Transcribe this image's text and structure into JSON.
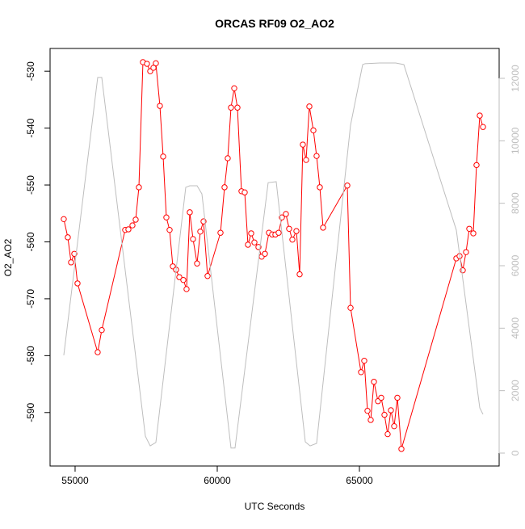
{
  "chart_data": {
    "type": "line",
    "title": "ORCAS RF09 O2_AO2",
    "xlabel": "UTC Seconds",
    "ylabel": "O2_AO2",
    "xlim": [
      54120,
      69915
    ],
    "xticks": [
      55000,
      60000,
      65000
    ],
    "ylim": [
      -599.4,
      -526.0
    ],
    "yticks": [
      -530,
      -540,
      -550,
      -560,
      -570,
      -580,
      -590
    ],
    "y2lim": [
      -414,
      12957
    ],
    "y2ticks": [
      0,
      2000,
      4000,
      6000,
      8000,
      10000,
      12000
    ],
    "y2color": "#bebebe",
    "series": [
      {
        "color": "#ff0000",
        "marker": "circle",
        "x": [
          54602,
          54744,
          54858,
          54972,
          55085,
          55795,
          55938,
          56761,
          56875,
          57017,
          57131,
          57244,
          57386,
          57528,
          57642,
          57756,
          57841,
          57983,
          58097,
          58210,
          58324,
          58438,
          58551,
          58665,
          58807,
          58920,
          59034,
          59148,
          59290,
          59403,
          59517,
          59659,
          60114,
          60256,
          60369,
          60483,
          60597,
          60710,
          60852,
          60966,
          61080,
          61193,
          61307,
          61449,
          61563,
          61676,
          61818,
          61932,
          62045,
          62159,
          62273,
          62415,
          62528,
          62642,
          62784,
          62898,
          63011,
          63125,
          63239,
          63381,
          63494,
          63608,
          63722,
          64574,
          64688,
          65057,
          65170,
          65284,
          65398,
          65511,
          65653,
          65767,
          65881,
          65994,
          66108,
          66222,
          66335,
          66477,
          68409,
          68523,
          68636,
          68750,
          68864,
          69006,
          69119,
          69233,
          69347
        ],
        "values": [
          -556.0,
          -559.2,
          -563.6,
          -562.1,
          -567.3,
          -579.4,
          -575.5,
          -557.9,
          -557.8,
          -557.1,
          -556.1,
          -550.4,
          -528.4,
          -528.7,
          -530.0,
          -529.4,
          -528.6,
          -536.1,
          -545.0,
          -555.7,
          -557.9,
          -564.3,
          -564.9,
          -566.2,
          -566.7,
          -568.3,
          -554.8,
          -559.5,
          -563.8,
          -558.2,
          -556.4,
          -566.0,
          -558.4,
          -550.4,
          -545.3,
          -536.4,
          -533.0,
          -536.4,
          -551.1,
          -551.3,
          -560.5,
          -558.5,
          -560.1,
          -560.9,
          -562.6,
          -562.1,
          -558.4,
          -558.7,
          -558.7,
          -558.4,
          -555.7,
          -555.1,
          -557.7,
          -559.6,
          -558.1,
          -565.7,
          -542.9,
          -545.6,
          -536.2,
          -540.4,
          -544.9,
          -550.4,
          -557.5,
          -550.1,
          -571.6,
          -582.9,
          -580.9,
          -589.7,
          -591.3,
          -584.6,
          -588.0,
          -587.4,
          -590.4,
          -593.8,
          -589.6,
          -592.4,
          -587.4,
          -596.4,
          -562.9,
          -562.5,
          -565.0,
          -561.8,
          -557.7,
          -558.5,
          -546.5,
          -537.8,
          -539.8
        ]
      },
      {
        "color": "#bebebe",
        "axis": "y2",
        "x": [
          54602,
          55795,
          55938,
          57472,
          57642,
          57841,
          58892,
          59034,
          59290,
          59460,
          60483,
          60625,
          61790,
          62074,
          63097,
          63267,
          63494,
          64688,
          65114,
          65199,
          65710,
          66278,
          66563,
          68409,
          69233,
          69347
        ],
        "values": [
          3130,
          12030,
          12030,
          540,
          230,
          340,
          8510,
          8560,
          8560,
          8300,
          160,
          160,
          8660,
          8690,
          360,
          230,
          310,
          10500,
          12440,
          12470,
          12490,
          12490,
          12440,
          7140,
          1450,
          1240
        ]
      }
    ]
  }
}
